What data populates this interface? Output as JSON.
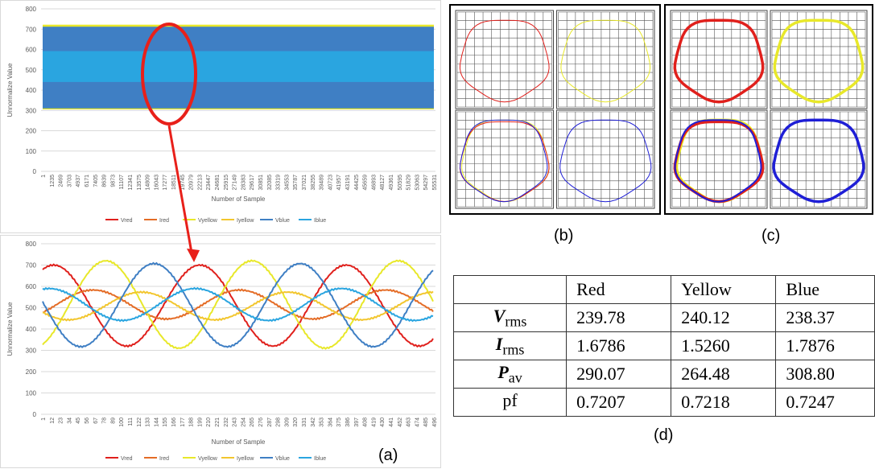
{
  "colors": {
    "vred": "#e0201c",
    "ired": "#e46c26",
    "vyellow": "#e8e82a",
    "iyellow": "#f2c62e",
    "vblue": "#3f7fc4",
    "iblue": "#2aa5e0",
    "highlight": "#e8201a",
    "grid": "#d9d9d9"
  },
  "chart_data": [
    {
      "type": "area",
      "ylabel": "Unnormalize Value",
      "xlabel": "Number of Sample",
      "ylim": [
        0,
        800
      ],
      "yticks": [
        0,
        100,
        200,
        300,
        400,
        500,
        600,
        700,
        800
      ],
      "xticks": [
        "1",
        "1235",
        "2469",
        "3703",
        "4937",
        "6171",
        "7405",
        "8639",
        "9873",
        "11107",
        "12341",
        "13575",
        "14809",
        "16043",
        "17277",
        "18511",
        "19745",
        "20979",
        "22213",
        "23447",
        "24681",
        "25915",
        "27149",
        "28383",
        "29617",
        "30851",
        "32085",
        "33319",
        "34553",
        "35787",
        "37021",
        "38255",
        "39489",
        "40723",
        "41957",
        "43191",
        "44425",
        "45659",
        "46893",
        "48127",
        "49361",
        "50595",
        "51829",
        "53063",
        "54297",
        "55531"
      ],
      "bands": [
        {
          "series": "Vyellow",
          "low": 305,
          "high": 722
        },
        {
          "series": "Vblue",
          "low": 310,
          "high": 712
        },
        {
          "series": "Iblue",
          "low": 440,
          "high": 592
        }
      ],
      "legend": [
        "Vred",
        "Ired",
        "Vyellow",
        "Iyellow",
        "Vblue",
        "Iblue"
      ],
      "legend_position": "bottom"
    },
    {
      "type": "line",
      "ylabel": "Unnormalize Value",
      "xlabel": "Number of Sample",
      "ylim": [
        0,
        800
      ],
      "yticks": [
        0,
        100,
        200,
        300,
        400,
        500,
        600,
        700,
        800
      ],
      "xlim": [
        1,
        496
      ],
      "xticks": [
        "1",
        "12",
        "23",
        "34",
        "45",
        "56",
        "67",
        "78",
        "89",
        "100",
        "111",
        "122",
        "133",
        "144",
        "155",
        "166",
        "177",
        "188",
        "199",
        "210",
        "221",
        "232",
        "243",
        "254",
        "265",
        "276",
        "287",
        "298",
        "309",
        "320",
        "331",
        "342",
        "353",
        "364",
        "375",
        "386",
        "397",
        "408",
        "419",
        "430",
        "441",
        "452",
        "463",
        "474",
        "485",
        "496"
      ],
      "period": 185,
      "series": [
        {
          "name": "Vred",
          "color_key": "vred",
          "offset": 510,
          "amp": 190,
          "peak_at": 200
        },
        {
          "name": "Ired",
          "color_key": "ired",
          "offset": 515,
          "amp": 68,
          "peak_at": 250
        },
        {
          "name": "Vyellow",
          "color_key": "vyellow",
          "offset": 515,
          "amp": 205,
          "peak_at": 81
        },
        {
          "name": "Iyellow",
          "color_key": "iyellow",
          "offset": 508,
          "amp": 65,
          "peak_at": 126
        },
        {
          "name": "Vblue",
          "color_key": "vblue",
          "offset": 512,
          "amp": 195,
          "peak_at": 142
        },
        {
          "name": "Iblue",
          "color_key": "iblue",
          "offset": 515,
          "amp": 75,
          "peak_at": 194
        }
      ],
      "legend_position": "bottom"
    }
  ],
  "highlight_annotation": "ellipse with arrow from top chart to bottom chart",
  "captions": {
    "a": "(a)",
    "b": "(b)",
    "c": "(c)",
    "d": "(d)"
  },
  "loops": {
    "b": [
      {
        "color_key": "vred",
        "label": "red"
      },
      {
        "color_key": "vyellow",
        "label": "yellow"
      },
      {
        "color_key": "vblue",
        "label": "combined"
      },
      {
        "color_key": "vblue",
        "label": "blue"
      }
    ],
    "c": [
      {
        "color_key": "vred",
        "label": "red"
      },
      {
        "color_key": "vyellow",
        "label": "yellow"
      },
      {
        "color_key": "vblue",
        "label": "combined"
      },
      {
        "color_key": "vblue",
        "label": "blue"
      }
    ]
  },
  "table": {
    "headers": [
      "",
      "Red",
      "Yellow",
      "Blue"
    ],
    "rows": [
      {
        "sym": "V",
        "sub": "rms",
        "values": [
          "239.78",
          "240.12",
          "238.37"
        ]
      },
      {
        "sym": "I",
        "sub": "rms",
        "values": [
          "1.6786",
          "1.5260",
          "1.7876"
        ]
      },
      {
        "sym": "P",
        "sub": "av",
        "values": [
          "290.07",
          "264.48",
          "308.80"
        ]
      },
      {
        "sym": "pf",
        "sub": "",
        "values": [
          "0.7207",
          "0.7218",
          "0.7247"
        ]
      }
    ]
  }
}
